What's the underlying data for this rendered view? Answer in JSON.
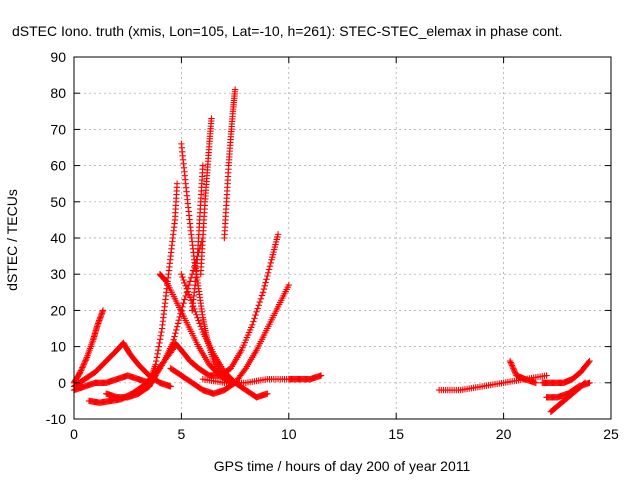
{
  "chart_data": {
    "type": "scatter",
    "title": "dSTEC Iono. truth (xmis, Lon=105, Lat=-10, h=261): STEC-STEC_elemax in phase cont.",
    "xlabel": "GPS time / hours of day 200 of year 2011",
    "ylabel": "dSTEC  / TECUs",
    "xlim": [
      0,
      25
    ],
    "ylim": [
      -10,
      90
    ],
    "xticks": [
      "0",
      "5",
      "10",
      "15",
      "20",
      "25"
    ],
    "yticks": [
      "-10",
      "0",
      "10",
      "20",
      "30",
      "40",
      "50",
      "60",
      "70",
      "80",
      "90"
    ],
    "grid": true,
    "marker": "plus",
    "color": "#ff0000",
    "series": [
      {
        "x": [
          0.0,
          0.3,
          0.6,
          0.9,
          1.1,
          1.35
        ],
        "y": [
          0,
          3,
          7,
          12,
          16,
          20
        ]
      },
      {
        "x": [
          0.0,
          0.5,
          1.0,
          1.5,
          2.0,
          2.3,
          2.6,
          3.0,
          3.5,
          4.0,
          4.5
        ],
        "y": [
          -1,
          1,
          3,
          6,
          9,
          11,
          8,
          5,
          2,
          0,
          -1
        ]
      },
      {
        "x": [
          0.0,
          0.5,
          1.0,
          1.5,
          2.0,
          2.5,
          3.0,
          3.5
        ],
        "y": [
          -2,
          -1,
          0,
          0,
          1,
          2,
          1,
          0
        ]
      },
      {
        "x": [
          0.7,
          1.2,
          1.7,
          2.2,
          2.7,
          3.2,
          3.7,
          4.2,
          4.7
        ],
        "y": [
          -5,
          -5.5,
          -5,
          -4.5,
          -3,
          -1,
          2,
          6,
          10
        ]
      },
      {
        "x": [
          1.5,
          2.0,
          2.5,
          3.0,
          3.5,
          3.8,
          4.2,
          4.6,
          5.0,
          5.5,
          6.0
        ],
        "y": [
          -3,
          -4,
          -4,
          -3,
          -1,
          2,
          6,
          11,
          20,
          30,
          40
        ]
      },
      {
        "x": [
          3.5,
          3.8,
          4.1,
          4.3,
          4.5,
          4.7,
          4.8
        ],
        "y": [
          0,
          5,
          15,
          25,
          35,
          45,
          55
        ]
      },
      {
        "x": [
          4.0,
          4.3,
          4.8,
          5.3,
          5.8,
          6.3,
          6.8,
          7.3
        ],
        "y": [
          30,
          28,
          22,
          16,
          10,
          5,
          2,
          0
        ]
      },
      {
        "x": [
          4.7,
          5.0,
          5.4,
          5.8,
          6.3,
          6.8,
          7.3,
          7.8,
          8.3,
          8.8,
          9.2,
          9.5
        ],
        "y": [
          11,
          9,
          6,
          4,
          2,
          2,
          4,
          9,
          16,
          25,
          34,
          41
        ]
      },
      {
        "x": [
          5.0,
          5.2,
          5.4,
          5.6,
          5.8,
          6.0,
          6.2,
          6.5,
          7.0
        ],
        "y": [
          66,
          55,
          44,
          34,
          26,
          18,
          12,
          6,
          1
        ]
      },
      {
        "x": [
          5.5,
          5.7,
          5.8,
          5.9,
          6.0
        ],
        "y": [
          20,
          30,
          40,
          50,
          60
        ]
      },
      {
        "x": [
          5.9,
          6.0,
          6.1,
          6.2,
          6.3,
          6.4
        ],
        "y": [
          30,
          40,
          50,
          58,
          66,
          73
        ]
      },
      {
        "x": [
          4.5,
          5.0,
          5.5,
          6.0,
          6.5,
          7.0,
          7.5,
          8.0,
          8.5,
          9.0,
          9.5,
          10.0
        ],
        "y": [
          4,
          2,
          0,
          -2,
          -3,
          -2,
          0,
          4,
          9,
          15,
          21,
          27
        ]
      },
      {
        "x": [
          7.0,
          7.1,
          7.2,
          7.3,
          7.4,
          7.5
        ],
        "y": [
          40,
          50,
          60,
          68,
          75,
          81
        ]
      },
      {
        "x": [
          5.0,
          5.5,
          6.0,
          6.5,
          7.0,
          7.5,
          8.0,
          8.5,
          9.0
        ],
        "y": [
          30,
          22,
          14,
          8,
          3,
          0,
          -2,
          -4,
          -3
        ]
      },
      {
        "x": [
          6.0,
          7.0,
          8.0,
          9.0,
          10.0,
          10.5,
          11.0,
          11.5
        ],
        "y": [
          1,
          0,
          0,
          1,
          1,
          1,
          1,
          2
        ]
      },
      {
        "x": [
          17.0,
          18.0,
          19.0,
          20.0,
          21.0,
          22.0
        ],
        "y": [
          -2,
          -2,
          -1,
          0,
          1,
          2
        ]
      },
      {
        "x": [
          20.3,
          20.6,
          21.0,
          21.5
        ],
        "y": [
          6,
          2,
          1,
          0
        ]
      },
      {
        "x": [
          21.8,
          22.3,
          22.8,
          23.2,
          23.6,
          24.0
        ],
        "y": [
          0,
          0,
          0,
          1,
          3,
          6
        ]
      },
      {
        "x": [
          22.0,
          22.5,
          23.0,
          23.5,
          24.0
        ],
        "y": [
          -4,
          -4,
          -3,
          -1,
          0
        ]
      },
      {
        "x": [
          22.2,
          22.6,
          23.0,
          23.4,
          23.8
        ],
        "y": [
          -8,
          -6,
          -4,
          -2,
          0
        ]
      }
    ]
  }
}
